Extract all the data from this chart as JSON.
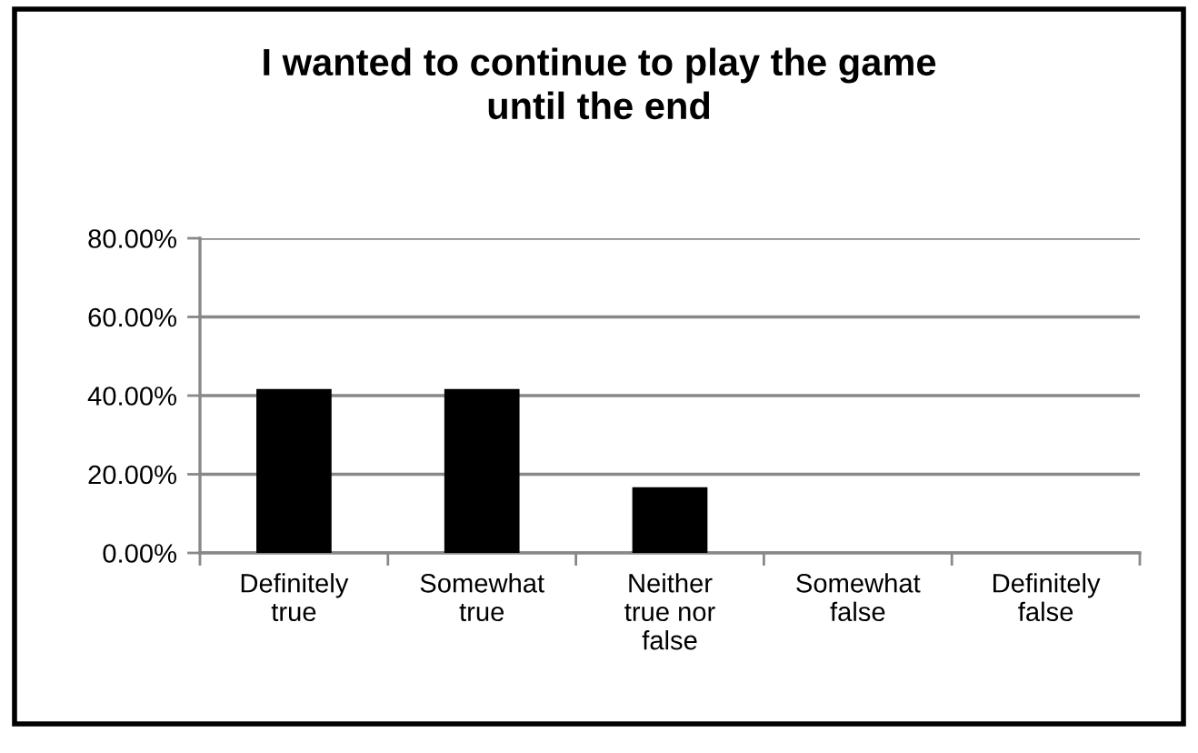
{
  "chart_data": {
    "type": "bar",
    "title": "I wanted to continue to play the game\nuntil the end",
    "categories": [
      "Definitely\ntrue",
      "Somewhat\ntrue",
      "Neither\ntrue nor\nfalse",
      "Somewhat\nfalse",
      "Definitely\nfalse"
    ],
    "values": [
      41.7,
      41.7,
      16.7,
      0,
      0
    ],
    "color": "#000000",
    "ylim": [
      0,
      80
    ],
    "yticks": [
      {
        "value": 0,
        "label": "0.00%"
      },
      {
        "value": 20,
        "label": "20.00%"
      },
      {
        "value": 40,
        "label": "40.00%"
      },
      {
        "value": 60,
        "label": "60.00%"
      },
      {
        "value": 80,
        "label": "80.00%"
      }
    ],
    "grid": "y",
    "legend": false
  }
}
